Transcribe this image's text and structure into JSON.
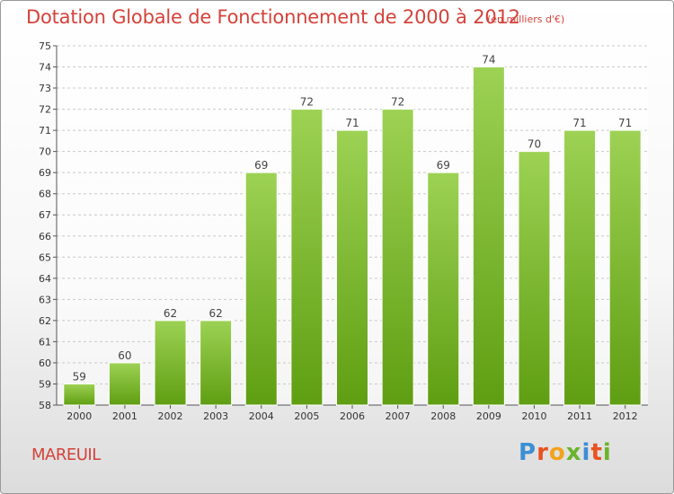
{
  "header": {
    "title": "Dotation Globale de Fonctionnement de 2000 à 2012",
    "unit_note": "(en milliers d'€)"
  },
  "footer": {
    "commune": "MAREUIL",
    "logo_text": "Proxiti"
  },
  "colors": {
    "title": "#d4423a",
    "bar_light": "#9dd254",
    "bar_dark": "#5f9e12",
    "logo_letters": [
      "#3d8fd4",
      "#e8531f",
      "#f2a31b",
      "#6ab42d",
      "#3d8fd4",
      "#e8531f",
      "#6ab42d"
    ]
  },
  "chart_data": {
    "type": "bar",
    "title": "Dotation Globale de Fonctionnement de 2000 à 2012",
    "subtitle": "(en milliers d'€)",
    "xlabel": "",
    "ylabel": "",
    "categories": [
      "2000",
      "2001",
      "2002",
      "2003",
      "2004",
      "2005",
      "2006",
      "2007",
      "2008",
      "2009",
      "2010",
      "2011",
      "2012"
    ],
    "values": [
      59,
      60,
      62,
      62,
      69,
      72,
      71,
      72,
      69,
      74,
      70,
      71,
      71
    ],
    "data_labels": [
      "59",
      "60",
      "62",
      "62",
      "69",
      "72",
      "71",
      "72",
      "69",
      "74",
      "70",
      "71",
      "71"
    ],
    "ylim": [
      58,
      75
    ],
    "yticks": [
      58,
      59,
      60,
      61,
      62,
      63,
      64,
      65,
      66,
      67,
      68,
      69,
      70,
      71,
      72,
      73,
      74,
      75
    ],
    "grid": true,
    "legend": "none"
  }
}
